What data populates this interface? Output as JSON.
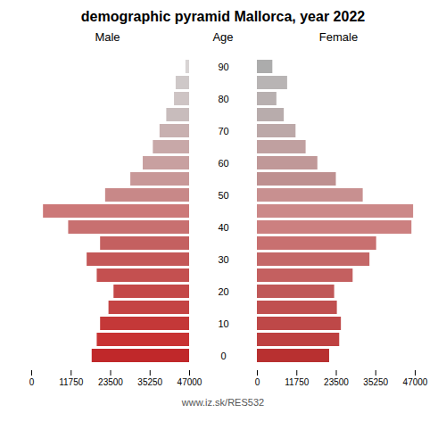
{
  "chart_data": {
    "type": "bar",
    "orientation": "horizontal",
    "title": "demographic pyramid Mallorca, year 2022",
    "y_label": "Age",
    "caption": "www.iz.sk/RES532",
    "categories": [
      "0",
      null,
      "10",
      null,
      "20",
      null,
      "30",
      null,
      "40",
      null,
      "50",
      null,
      "60",
      null,
      "70",
      null,
      "80",
      null,
      "90"
    ],
    "series": [
      {
        "name": "Male",
        "values": [
          29000,
          27500,
          26500,
          24000,
          22500,
          27500,
          30500,
          26500,
          36000,
          43500,
          25000,
          17500,
          13800,
          10800,
          8800,
          6800,
          4500,
          4000,
          1100
        ],
        "colors": [
          "#c0282a",
          "#c83232",
          "#c43838",
          "#c44444",
          "#c44848",
          "#c45050",
          "#c45858",
          "#c46060",
          "#c87070",
          "#cc7878",
          "#c88888",
          "#c89898",
          "#c8a0a0",
          "#c8a8a8",
          "#c8b0b0",
          "#c8bcbc",
          "#cec4c4",
          "#cec8c8",
          "#d8d4d4"
        ],
        "xlim": [
          47000,
          0
        ],
        "xticks": [
          {
            "value": 0,
            "label": "47000"
          },
          {
            "value": 11750,
            "label": "35250"
          },
          {
            "value": 23500,
            "label": "23500"
          },
          {
            "value": 35250,
            "label": "11750"
          },
          {
            "value": 47000,
            "label": "0"
          }
        ]
      },
      {
        "name": "Female",
        "values": [
          21500,
          24500,
          25000,
          23800,
          23000,
          28500,
          33500,
          35500,
          46000,
          46500,
          31500,
          23500,
          18000,
          14500,
          11500,
          8000,
          5800,
          9000,
          4600
        ],
        "colors": [
          "#b83030",
          "#be4040",
          "#be4848",
          "#c05050",
          "#c05858",
          "#c46060",
          "#c46868",
          "#c87070",
          "#cc8080",
          "#cc8888",
          "#c89090",
          "#be9090",
          "#c09898",
          "#c0a0a0",
          "#bca8a8",
          "#b8acac",
          "#b8b0b0",
          "#b8b4b4",
          "#acacac"
        ],
        "xlim": [
          0,
          47000
        ],
        "xticks": [
          0,
          11750,
          23500,
          35250,
          47000
        ]
      }
    ]
  }
}
